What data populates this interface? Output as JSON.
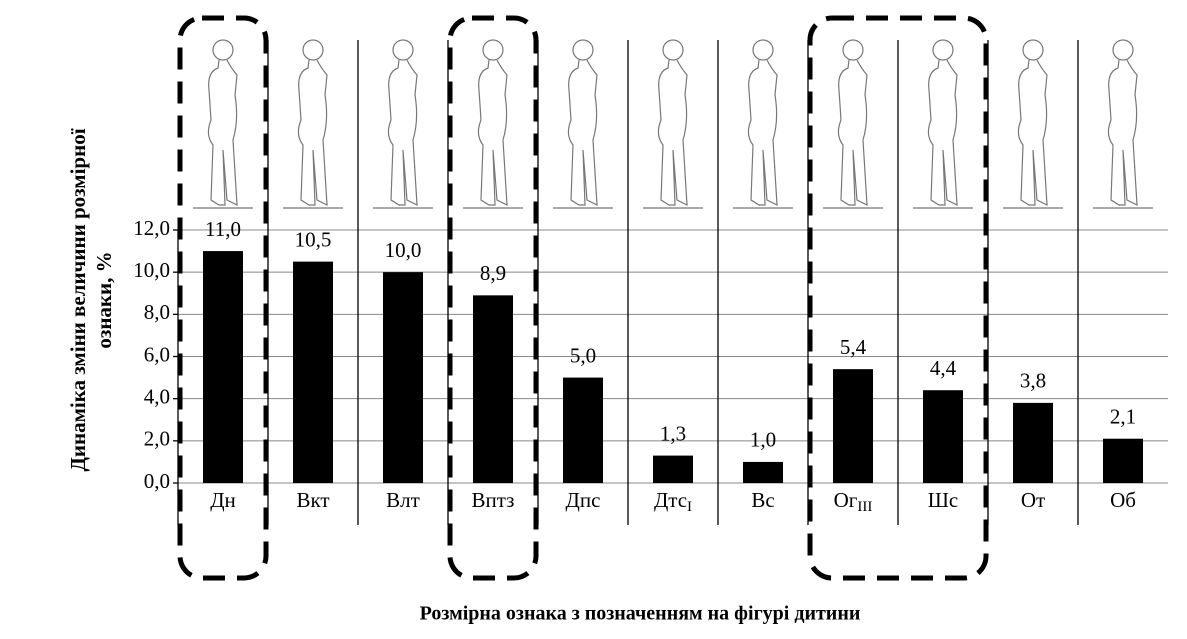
{
  "chart_data": {
    "type": "bar",
    "categories": [
      "Дн",
      "Вкт",
      "Влт",
      "Вптз",
      "Дпс",
      "Дтс",
      "Вс",
      "Ог",
      "Шс",
      "От",
      "Об"
    ],
    "category_subscripts": [
      null,
      null,
      null,
      null,
      null,
      "I",
      null,
      "III",
      null,
      null,
      null
    ],
    "values": [
      11.0,
      10.5,
      10.0,
      8.9,
      5.0,
      1.3,
      1.0,
      5.4,
      4.4,
      3.8,
      2.1
    ],
    "value_labels": [
      "11,0",
      "10,5",
      "10,0",
      "8,9",
      "5,0",
      "1,3",
      "1,0",
      "5,4",
      "4,4",
      "3,8",
      "2,1"
    ],
    "color": "#000000",
    "ylim": [
      0,
      12
    ],
    "yticks": [
      {
        "value": 0,
        "label": "0,0"
      },
      {
        "value": 2,
        "label": "2,0"
      },
      {
        "value": 4,
        "label": "4,0"
      },
      {
        "value": 6,
        "label": "6,0"
      },
      {
        "value": 8,
        "label": "8,0"
      },
      {
        "value": 10,
        "label": "10,0"
      },
      {
        "value": 12,
        "label": "12,0"
      }
    ],
    "grid": true,
    "ylabel": [
      "Динаміка зміни величини  розмірної",
      "ознаки, %"
    ],
    "xlabel": "Розмірна ознака з позначенням на фігурі дитини",
    "highlight_groups": [
      [
        0,
        0
      ],
      [
        3,
        3
      ],
      [
        7,
        8
      ]
    ]
  }
}
